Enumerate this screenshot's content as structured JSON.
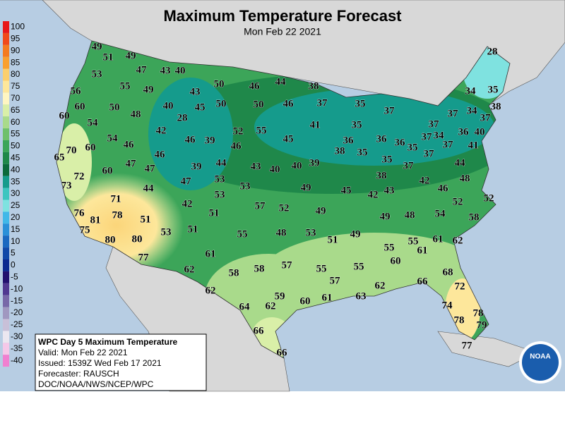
{
  "title": "Maximum Temperature Forecast",
  "subtitle": "Mon Feb 22 2021",
  "legend": {
    "labels": [
      100,
      95,
      90,
      85,
      80,
      75,
      70,
      65,
      60,
      55,
      50,
      45,
      40,
      35,
      30,
      25,
      20,
      15,
      10,
      5,
      0,
      -5,
      -10,
      -15,
      -20,
      -25,
      -30,
      -35,
      -40
    ],
    "colors": [
      "#e8191a",
      "#f04a1a",
      "#f47b20",
      "#f9a030",
      "#fbcf6e",
      "#fde79b",
      "#fef6c2",
      "#d9efa8",
      "#a9da8b",
      "#6fc06b",
      "#3ca559",
      "#1f884a",
      "#0c6a3c",
      "#159b8c",
      "#3dc5c0",
      "#7fe2e0",
      "#41b8e8",
      "#2a90d8",
      "#1a68c0",
      "#1048a8",
      "#0a2890",
      "#22106e",
      "#503890",
      "#7868a8",
      "#a098c0",
      "#c8c0d8",
      "#ebe7f0",
      "#f5c8e8",
      "#f080d0"
    ]
  },
  "info": [
    "WPC Day 5 Maximum Temperature",
    "Valid: Mon Feb 22 2021",
    "Issued: 1539Z Wed Feb 17 2021",
    "Forecaster: RAUSCH",
    "DOC/NOAA/NWS/NCEP/WPC"
  ],
  "logo": "NOAA",
  "temperatures": [
    49,
    51,
    49,
    47,
    43,
    40,
    53,
    55,
    49,
    50,
    46,
    44,
    38,
    56,
    43,
    60,
    50,
    40,
    45,
    50,
    50,
    46,
    37,
    35,
    37,
    37,
    34,
    35,
    28,
    60,
    48,
    28,
    34,
    38,
    37,
    54,
    42,
    52,
    55,
    41,
    35,
    37,
    36,
    40,
    54,
    46,
    39,
    45,
    36,
    36,
    36,
    35,
    37,
    34,
    37,
    70,
    60,
    46,
    46,
    46,
    38,
    35,
    35,
    37,
    41,
    65,
    47,
    47,
    39,
    44,
    43,
    40,
    40,
    39,
    37,
    44,
    72,
    60,
    38,
    53,
    48,
    73,
    44,
    47,
    53,
    49,
    45,
    42,
    43,
    42,
    46,
    71,
    53,
    42,
    57,
    52,
    52,
    52,
    76,
    81,
    78,
    51,
    51,
    49,
    49,
    48,
    54,
    58,
    75,
    53,
    51,
    55,
    48,
    53,
    51,
    49,
    80,
    80,
    55,
    55,
    61,
    62,
    61,
    77,
    61,
    60,
    57,
    58,
    55,
    55,
    62,
    58,
    68,
    66,
    57,
    62,
    72,
    62,
    59,
    60,
    61,
    63,
    64,
    62,
    74,
    78,
    78,
    79,
    66,
    77,
    66
  ]
}
